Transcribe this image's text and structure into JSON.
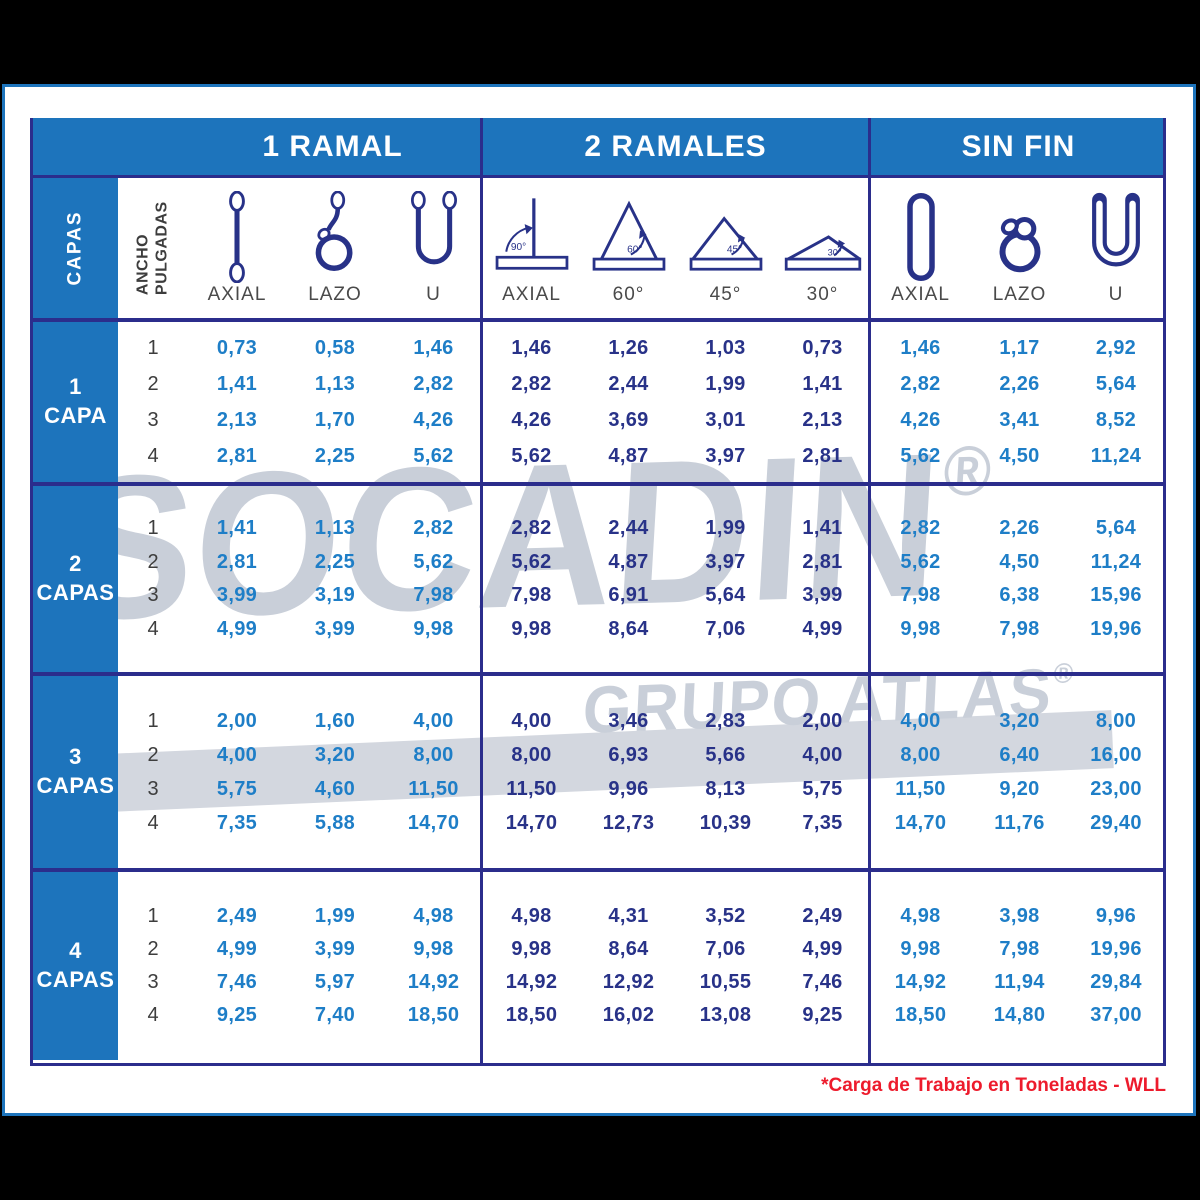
{
  "watermark": {
    "line1": "SOCADIN",
    "line2": "GRUPO ATLAS",
    "reg": "®"
  },
  "footnote": "*Carga de Trabajo en Toneladas - WLL",
  "colors": {
    "header_blue": "#1d74bc",
    "navy_line": "#2b2d8c",
    "value_light_blue": "#1e7ec7",
    "value_dark_navy": "#283288",
    "note_red": "#ed1b2c",
    "watermark_gray": "#c9cfd9"
  },
  "table": {
    "corner_label": "CAPAS",
    "width_label_lines": [
      "ANCHO",
      "PULGADAS"
    ],
    "sections": [
      {
        "label": "1 RAMAL",
        "columns": [
          {
            "label": "AXIAL",
            "icon": "single-leg-vertical-sling-icon"
          },
          {
            "label": "LAZO",
            "icon": "single-leg-choker-sling-icon"
          },
          {
            "label": "U",
            "icon": "single-leg-basket-sling-icon"
          }
        ]
      },
      {
        "label": "2 RAMALES",
        "columns": [
          {
            "label": "AXIAL",
            "angle": "90°",
            "icon": "load-angle-90-icon"
          },
          {
            "label": "60°",
            "angle": "60°",
            "icon": "load-angle-60-icon"
          },
          {
            "label": "45°",
            "angle": "45°",
            "icon": "load-angle-45-icon"
          },
          {
            "label": "30°",
            "angle": "30°",
            "icon": "load-angle-30-icon"
          }
        ]
      },
      {
        "label": "SIN FIN",
        "columns": [
          {
            "label": "AXIAL",
            "icon": "endless-vertical-sling-icon"
          },
          {
            "label": "LAZO",
            "icon": "endless-choker-sling-icon"
          },
          {
            "label": "U",
            "icon": "endless-basket-sling-icon"
          }
        ]
      }
    ],
    "groups": [
      {
        "label_num": "1",
        "label_word": "CAPA",
        "rows": [
          {
            "width": "1",
            "values": [
              "0,73",
              "0,58",
              "1,46",
              "1,46",
              "1,26",
              "1,03",
              "0,73",
              "1,46",
              "1,17",
              "2,92"
            ]
          },
          {
            "width": "2",
            "values": [
              "1,41",
              "1,13",
              "2,82",
              "2,82",
              "2,44",
              "1,99",
              "1,41",
              "2,82",
              "2,26",
              "5,64"
            ]
          },
          {
            "width": "3",
            "values": [
              "2,13",
              "1,70",
              "4,26",
              "4,26",
              "3,69",
              "3,01",
              "2,13",
              "4,26",
              "3,41",
              "8,52"
            ]
          },
          {
            "width": "4",
            "values": [
              "2,81",
              "2,25",
              "5,62",
              "5,62",
              "4,87",
              "3,97",
              "2,81",
              "5,62",
              "4,50",
              "11,24"
            ]
          }
        ]
      },
      {
        "label_num": "2",
        "label_word": "CAPAS",
        "rows": [
          {
            "width": "1",
            "values": [
              "1,41",
              "1,13",
              "2,82",
              "2,82",
              "2,44",
              "1,99",
              "1,41",
              "2,82",
              "2,26",
              "5,64"
            ]
          },
          {
            "width": "2",
            "values": [
              "2,81",
              "2,25",
              "5,62",
              "5,62",
              "4,87",
              "3,97",
              "2,81",
              "5,62",
              "4,50",
              "11,24"
            ]
          },
          {
            "width": "3",
            "values": [
              "3,99",
              "3,19",
              "7,98",
              "7,98",
              "6,91",
              "5,64",
              "3,99",
              "7,98",
              "6,38",
              "15,96"
            ]
          },
          {
            "width": "4",
            "values": [
              "4,99",
              "3,99",
              "9,98",
              "9,98",
              "8,64",
              "7,06",
              "4,99",
              "9,98",
              "7,98",
              "19,96"
            ]
          }
        ]
      },
      {
        "label_num": "3",
        "label_word": "CAPAS",
        "rows": [
          {
            "width": "1",
            "values": [
              "2,00",
              "1,60",
              "4,00",
              "4,00",
              "3,46",
              "2,83",
              "2,00",
              "4,00",
              "3,20",
              "8,00"
            ]
          },
          {
            "width": "2",
            "values": [
              "4,00",
              "3,20",
              "8,00",
              "8,00",
              "6,93",
              "5,66",
              "4,00",
              "8,00",
              "6,40",
              "16,00"
            ]
          },
          {
            "width": "3",
            "values": [
              "5,75",
              "4,60",
              "11,50",
              "11,50",
              "9,96",
              "8,13",
              "5,75",
              "11,50",
              "9,20",
              "23,00"
            ]
          },
          {
            "width": "4",
            "values": [
              "7,35",
              "5,88",
              "14,70",
              "14,70",
              "12,73",
              "10,39",
              "7,35",
              "14,70",
              "11,76",
              "29,40"
            ]
          }
        ]
      },
      {
        "label_num": "4",
        "label_word": "CAPAS",
        "rows": [
          {
            "width": "1",
            "values": [
              "2,49",
              "1,99",
              "4,98",
              "4,98",
              "4,31",
              "3,52",
              "2,49",
              "4,98",
              "3,98",
              "9,96"
            ]
          },
          {
            "width": "2",
            "values": [
              "4,99",
              "3,99",
              "9,98",
              "9,98",
              "8,64",
              "7,06",
              "4,99",
              "9,98",
              "7,98",
              "19,96"
            ]
          },
          {
            "width": "3",
            "values": [
              "7,46",
              "5,97",
              "14,92",
              "14,92",
              "12,92",
              "10,55",
              "7,46",
              "14,92",
              "11,94",
              "29,84"
            ]
          },
          {
            "width": "4",
            "values": [
              "9,25",
              "7,40",
              "18,50",
              "18,50",
              "16,02",
              "13,08",
              "9,25",
              "18,50",
              "14,80",
              "37,00"
            ]
          }
        ]
      }
    ]
  }
}
